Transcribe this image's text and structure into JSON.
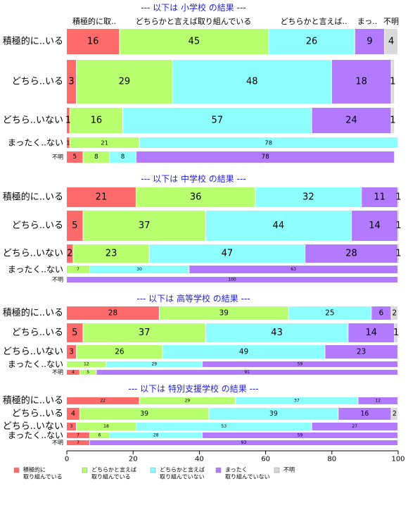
{
  "header_labels": [
    "積極的に取..",
    "どちらかと言えば取り組んでいる",
    "どちらかと言えば..",
    "まっ..",
    "不明"
  ],
  "colors": {
    "積極的に取り組んでいる": "#ff6b6b",
    "どちらかと言えば取り組んでいる": "#b7ff6e",
    "どちらかと言えば取り組んでいない": "#8effff",
    "まったく取り組んでいない": "#b27bff",
    "不明": "#d9d9d9",
    "title": "#1f1fd6"
  },
  "chart_data": {
    "type": "bar",
    "orientation": "horizontal",
    "stacked": "percent",
    "xlim": [
      0,
      100
    ],
    "xticks": [
      0,
      20,
      40,
      60,
      80,
      100
    ],
    "series_names": [
      "積極的に取り組んでいる",
      "どちらかと言えば取り組んでいる",
      "どちらかと言えば取り組んでいない",
      "まったく取り組んでいない",
      "不明"
    ],
    "legend": {
      "placement": "bottom",
      "entries": [
        {
          "line1": "積極的に",
          "line2": "取り組んでいる"
        },
        {
          "line1": "どちらかと言えば",
          "line2": "取り組んでいる"
        },
        {
          "line1": "どちらかと言えば",
          "line2": "取り組んでいない"
        },
        {
          "line1": "まったく",
          "line2": "取り組んでいない"
        },
        {
          "line1": "不明",
          "line2": ""
        }
      ]
    },
    "panels": [
      {
        "title": "--- 以下は 小学校 の結果 ---",
        "rows": [
          {
            "label": "積極的に..いる",
            "values": [
              16,
              45,
              26,
              9,
              4
            ]
          },
          {
            "label": "どちら..いる",
            "values": [
              3,
              29,
              48,
              18,
              1
            ]
          },
          {
            "label": "どちら..いない",
            "values": [
              1,
              16,
              57,
              24,
              1
            ]
          },
          {
            "label": "まったく..ない",
            "values": [
              1,
              21,
              78,
              0,
              0
            ]
          },
          {
            "label": "不明",
            "values": [
              5,
              8,
              8,
              78,
              0
            ]
          }
        ]
      },
      {
        "title": "--- 以下は 中学校 の結果 ---",
        "rows": [
          {
            "label": "積極的に..いる",
            "values": [
              21,
              36,
              32,
              11,
              1
            ]
          },
          {
            "label": "どちら..いる",
            "values": [
              5,
              37,
              44,
              14,
              1
            ]
          },
          {
            "label": "どちら..いない",
            "values": [
              2,
              23,
              47,
              28,
              1
            ]
          },
          {
            "label": "まったく..ない",
            "values": [
              0,
              7,
              30,
              63,
              0
            ]
          },
          {
            "label": "不明",
            "values": [
              0,
              0,
              0,
              100,
              0
            ]
          }
        ]
      },
      {
        "title": "--- 以下は 高等学校 の結果 ---",
        "rows": [
          {
            "label": "積極的に..いる",
            "values": [
              28,
              39,
              25,
              6,
              2
            ]
          },
          {
            "label": "どちら..いる",
            "values": [
              5,
              37,
              43,
              14,
              1
            ]
          },
          {
            "label": "どちら..いない",
            "values": [
              3,
              26,
              49,
              23,
              0
            ]
          },
          {
            "label": "まったく..ない",
            "values": [
              0,
              12,
              29,
              59,
              0
            ]
          },
          {
            "label": "不明",
            "values": [
              4,
              5,
              0,
              91,
              0
            ]
          }
        ]
      },
      {
        "title": "--- 以下は 特別支援学校 の結果 ---",
        "rows": [
          {
            "label": "積極的に..いる",
            "values": [
              22,
              29,
              37,
              12,
              0
            ]
          },
          {
            "label": "どちら..いる",
            "values": [
              4,
              39,
              39,
              16,
              2
            ]
          },
          {
            "label": "どちら..いない",
            "values": [
              3,
              18,
              53,
              27,
              0
            ]
          },
          {
            "label": "まったく..ない",
            "values": [
              7,
              6,
              28,
              59,
              0
            ]
          },
          {
            "label": "不明",
            "values": [
              7,
              0,
              0,
              93,
              0
            ]
          }
        ]
      }
    ]
  }
}
